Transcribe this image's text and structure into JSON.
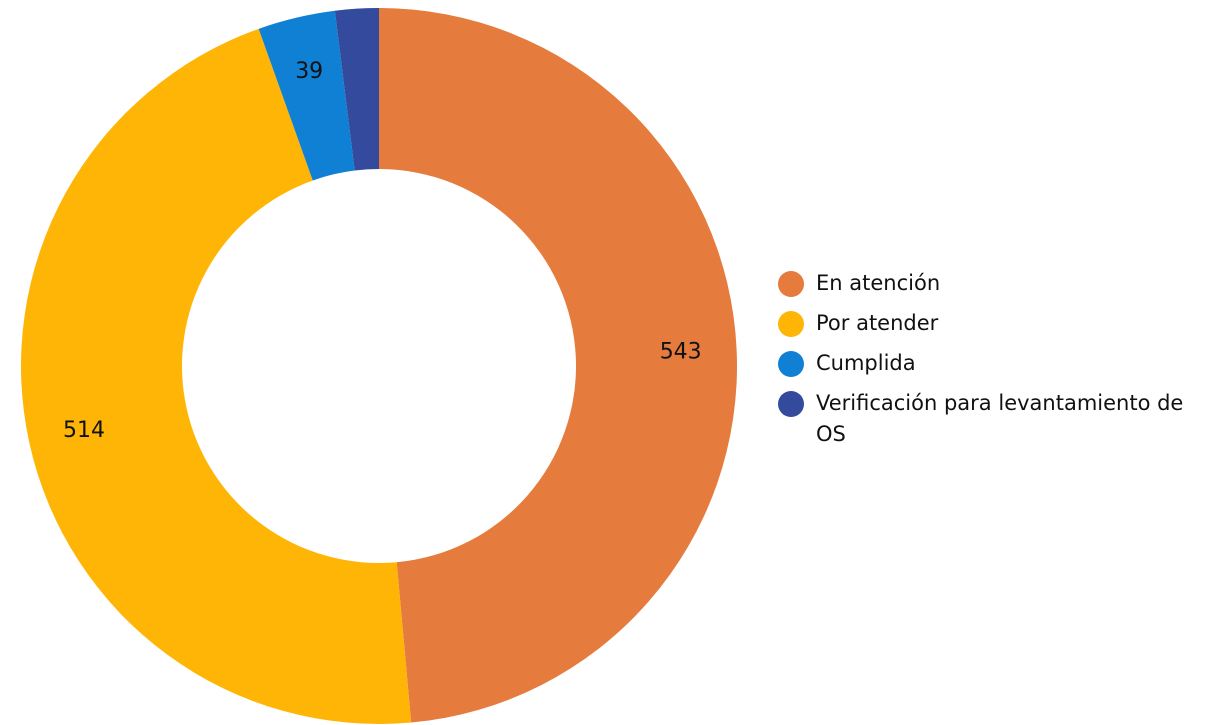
{
  "chart_data": {
    "type": "donut",
    "categories": [
      "En atención",
      "Por atender",
      "Cumplida",
      "Verificación para levantamiento de OS"
    ],
    "values": [
      543,
      514,
      39,
      22
    ],
    "value_labels": [
      "543",
      "514",
      "39",
      null
    ],
    "colors": [
      "#e57b3d",
      "#feb506",
      "#0f80d3",
      "#344a9d"
    ],
    "legend": "right"
  }
}
